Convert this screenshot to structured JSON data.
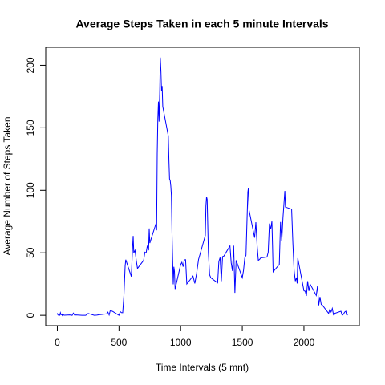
{
  "chart_data": {
    "type": "line",
    "title": "Average Steps Taken in each 5 minute Intervals",
    "x_label": "Time Intervals (5 mnt)",
    "y_label": "Average Number of Steps Taken",
    "color": "#0000ff",
    "xlim": [
      -94.2,
      2449.2
    ],
    "ylim": [
      -8.25,
      214.4
    ],
    "xticks": [
      0,
      500,
      1000,
      1500,
      2000
    ],
    "yticks": [
      0,
      50,
      100,
      150,
      200
    ],
    "x": [
      0,
      5,
      10,
      15,
      20,
      25,
      30,
      35,
      40,
      45,
      50,
      55,
      100,
      110,
      120,
      130,
      140,
      150,
      200,
      220,
      230,
      250,
      300,
      320,
      340,
      400,
      410,
      420,
      430,
      440,
      450,
      500,
      510,
      520,
      530,
      540,
      550,
      555,
      600,
      610,
      615,
      620,
      630,
      640,
      650,
      700,
      710,
      720,
      730,
      740,
      745,
      750,
      800,
      805,
      810,
      815,
      820,
      825,
      830,
      835,
      840,
      845,
      850,
      855,
      900,
      905,
      910,
      915,
      920,
      925,
      930,
      935,
      940,
      945,
      950,
      955,
      1000,
      1010,
      1020,
      1030,
      1040,
      1050,
      1100,
      1115,
      1130,
      1145,
      1200,
      1205,
      1210,
      1215,
      1225,
      1235,
      1245,
      1300,
      1310,
      1320,
      1330,
      1340,
      1350,
      1400,
      1410,
      1420,
      1430,
      1440,
      1450,
      1500,
      1510,
      1520,
      1530,
      1540,
      1545,
      1550,
      1555,
      1600,
      1610,
      1620,
      1630,
      1640,
      1650,
      1700,
      1710,
      1720,
      1730,
      1740,
      1745,
      1750,
      1800,
      1810,
      1820,
      1830,
      1845,
      1850,
      1900,
      1910,
      1920,
      1930,
      1940,
      1945,
      1950,
      2000,
      2010,
      2020,
      2030,
      2040,
      2050,
      2100,
      2110,
      2120,
      2130,
      2140,
      2150,
      2200,
      2210,
      2220,
      2230,
      2240,
      2245,
      2250,
      2300,
      2310,
      2320,
      2330,
      2340,
      2345,
      2350,
      2355
    ],
    "values": [
      1.7,
      0.3,
      0.1,
      0.2,
      0.1,
      2.1,
      0.5,
      0.9,
      0,
      1.5,
      0.3,
      0.1,
      0.3,
      0.2,
      0,
      1.8,
      0.2,
      0.3,
      0,
      0,
      0,
      1.5,
      0,
      0.2,
      0.5,
      1.2,
      2.6,
      0.3,
      4.1,
      3.5,
      3.1,
      0,
      3,
      2.2,
      2.1,
      16,
      39.5,
      44.5,
      31,
      53.8,
      63.5,
      50,
      52,
      44,
      37.5,
      44,
      50.5,
      49.9,
      55.7,
      52,
      69.5,
      57.8,
      73.4,
      68,
      129,
      157.5,
      171,
      155,
      177.3,
      206.2,
      195.9,
      179.6,
      183.4,
      167,
      143.5,
      124,
      109,
      108,
      103.7,
      95.9,
      66.2,
      45.2,
      24.8,
      38.8,
      35,
      21,
      40.6,
      42.4,
      38.9,
      44.3,
      44.5,
      25.1,
      31.4,
      25.5,
      33.8,
      44.6,
      63.9,
      87.6,
      94.8,
      92.8,
      50,
      32.4,
      30,
      26,
      43.2,
      46.2,
      27.3,
      47,
      47.3,
      55.5,
      42,
      35.5,
      55.7,
      18,
      44,
      30.1,
      36,
      45.8,
      48.1,
      82.1,
      98.7,
      102.1,
      84,
      62.1,
      74.5,
      56,
      44,
      44.7,
      46,
      46.6,
      50.5,
      73.4,
      68.9,
      75.1,
      56.5,
      34.8,
      40.7,
      74.7,
      59.3,
      78.3,
      99.5,
      86.6,
      84.9,
      58,
      36,
      27.4,
      30.2,
      25.5,
      45.7,
      19.6,
      19.3,
      15.5,
      27.3,
      19.5,
      25,
      15.9,
      23.5,
      8,
      14.7,
      8.7,
      8.1,
      1.6,
      4.8,
      2.7,
      5.5,
      0.3,
      0.2,
      1.6,
      3.3,
      0,
      0.96,
      2.6,
      3.3,
      0.6,
      0.2,
      1.1
    ]
  }
}
